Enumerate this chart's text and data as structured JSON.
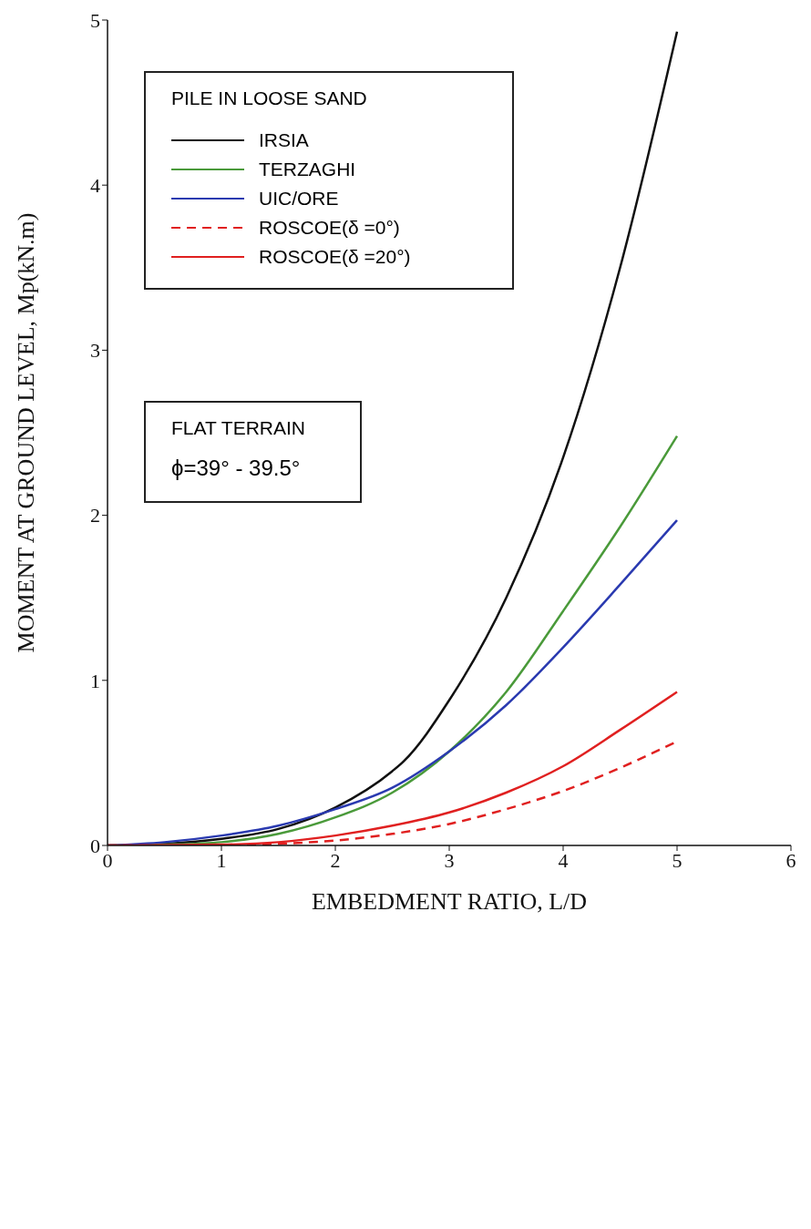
{
  "chart_data": {
    "type": "line",
    "xlabel": "EMBEDMENT RATIO,  L/D",
    "ylabel": "MOMENT  AT  GROUND  LEVEL,  Mp(kN.m)",
    "legend_title": "PILE IN LOOSE SAND",
    "legend": "top left",
    "xlim": [
      0,
      6
    ],
    "xticks": [
      0,
      1,
      2,
      3,
      4,
      5,
      6
    ],
    "ylim": [
      0,
      5
    ],
    "yticks": [
      0,
      1,
      2,
      3,
      4,
      5
    ],
    "grid": false,
    "marker": "none",
    "annotations": [
      "FLAT TERRAIN",
      "ϕ=39° -  39.5°"
    ],
    "series": [
      {
        "name": "IRSIA",
        "color": "#111111",
        "line_style": "solid",
        "x": [
          0,
          0.5,
          1,
          1.5,
          2,
          2.5,
          2.6,
          3,
          3.5,
          4,
          4.5,
          5
        ],
        "values": [
          0,
          0.01,
          0.04,
          0.1,
          0.23,
          0.45,
          0.51,
          0.88,
          1.5,
          2.35,
          3.5,
          4.93
        ]
      },
      {
        "name": "TERZAGHI",
        "color": "#4a9a3a",
        "line_style": "solid",
        "x": [
          0,
          0.5,
          1,
          1.5,
          2,
          2.5,
          3,
          3.5,
          4,
          4.5,
          5
        ],
        "values": [
          0,
          0.005,
          0.02,
          0.07,
          0.17,
          0.32,
          0.57,
          0.93,
          1.42,
          1.93,
          2.48
        ]
      },
      {
        "name": "UIC/ORE",
        "color": "#2a3ab0",
        "line_style": "solid",
        "x": [
          0,
          0.5,
          1,
          1.5,
          2,
          2.5,
          3,
          3.5,
          4,
          4.5,
          5
        ],
        "values": [
          0,
          0.02,
          0.06,
          0.12,
          0.22,
          0.35,
          0.57,
          0.85,
          1.2,
          1.58,
          1.97
        ]
      },
      {
        "name": "ROSCOE(δ =0°)",
        "color": "#e02020",
        "line_style": "dashed",
        "x": [
          0,
          1,
          1.5,
          2,
          2.5,
          3,
          3.5,
          4,
          4.5,
          5
        ],
        "values": [
          0,
          0,
          0.01,
          0.03,
          0.07,
          0.13,
          0.22,
          0.33,
          0.47,
          0.63
        ]
      },
      {
        "name": "ROSCOE(δ =20°)",
        "color": "#e02020",
        "line_style": "solid",
        "x": [
          0,
          1,
          1.5,
          2,
          2.5,
          3,
          3.5,
          4,
          4.5,
          5
        ],
        "values": [
          0,
          0.005,
          0.02,
          0.06,
          0.12,
          0.2,
          0.32,
          0.48,
          0.7,
          0.93
        ]
      }
    ]
  }
}
